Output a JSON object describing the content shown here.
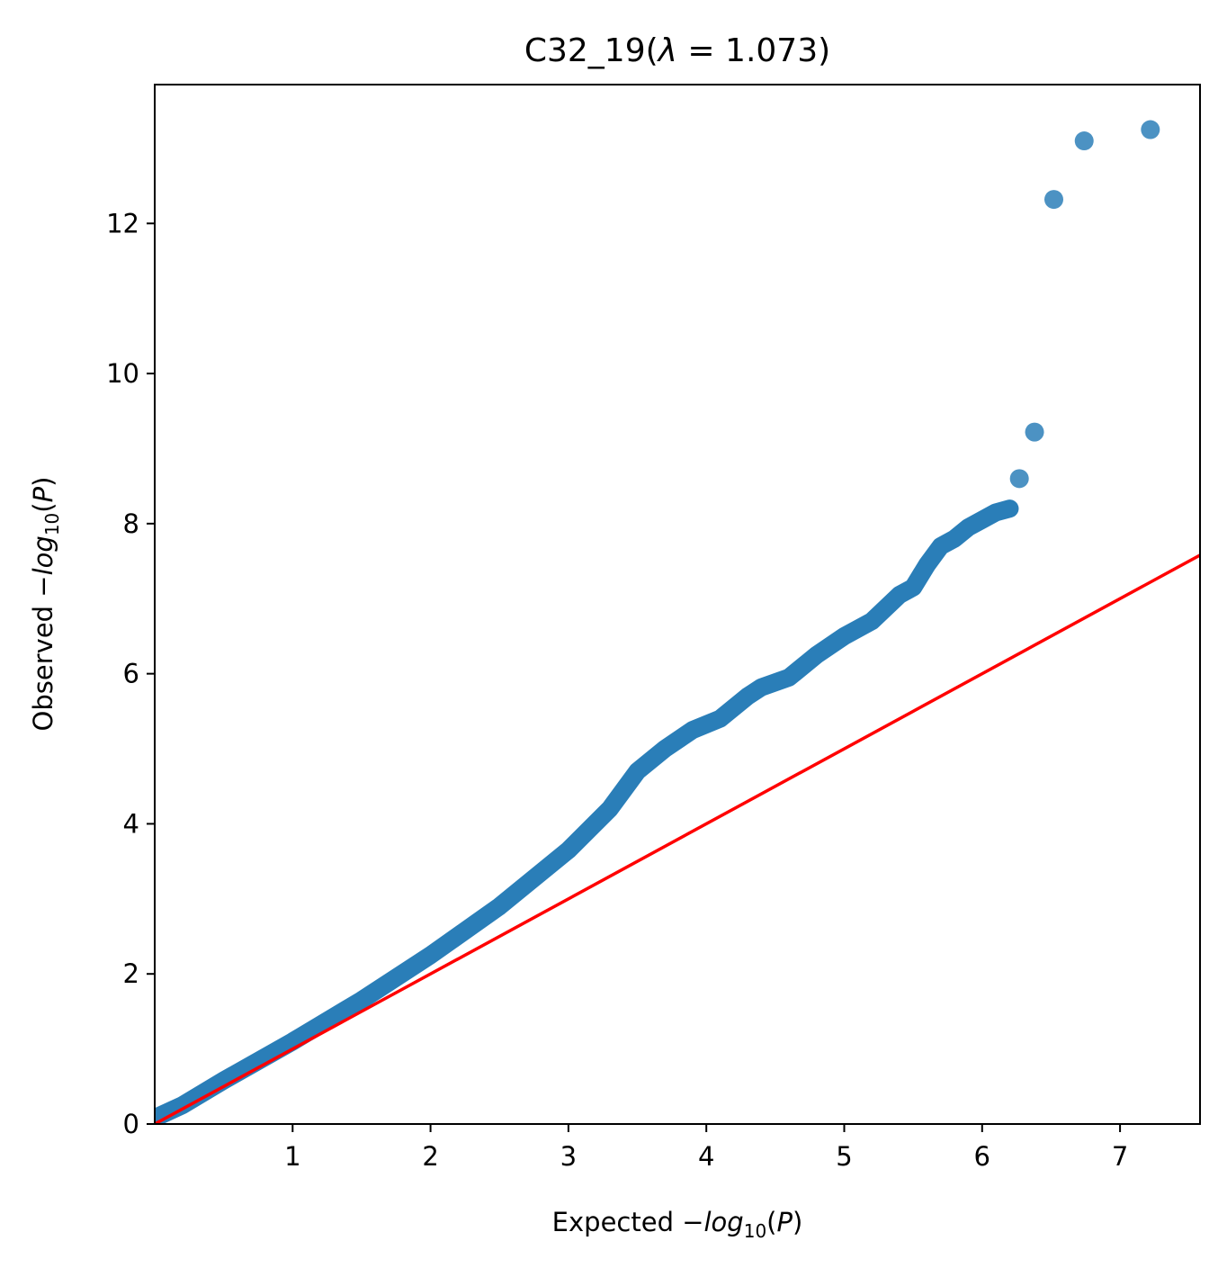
{
  "chart_data": {
    "type": "scatter",
    "title": {
      "prefix": "C32_19(",
      "lambda_symbol": "λ",
      "equals": " = 1.073)"
    },
    "xlabel": {
      "prefix": "Expected −",
      "log": "log",
      "sub": "10",
      "arg_open": "(",
      "p": "P",
      "arg_close": ")"
    },
    "ylabel": {
      "prefix": "Observed −",
      "log": "log",
      "sub": "10",
      "arg_open": "(",
      "p": "P",
      "arg_close": ")"
    },
    "xlim": [
      0,
      7.58
    ],
    "ylim": [
      0,
      13.85
    ],
    "xticks": [
      1,
      2,
      3,
      4,
      5,
      6,
      7
    ],
    "yticks": [
      0,
      2,
      4,
      6,
      8,
      10,
      12
    ],
    "grid": false,
    "colors": {
      "points": "#1f77b4",
      "reference_line": "#ff0000",
      "axes": "#000000"
    },
    "reference_line": {
      "x": [
        0,
        7.58
      ],
      "y": [
        0,
        7.58
      ]
    },
    "observed_curve": {
      "x": [
        0.0,
        0.2,
        0.5,
        1.0,
        1.5,
        2.0,
        2.5,
        3.0,
        3.3,
        3.5,
        3.7,
        3.9,
        4.1,
        4.3,
        4.4,
        4.6,
        4.8,
        5.0,
        5.2,
        5.4,
        5.5,
        5.6,
        5.7,
        5.8,
        5.9,
        6.0,
        6.1,
        6.2
      ],
      "y": [
        0.08,
        0.25,
        0.58,
        1.1,
        1.65,
        2.25,
        2.9,
        3.65,
        4.2,
        4.7,
        5.0,
        5.25,
        5.4,
        5.7,
        5.82,
        5.95,
        6.25,
        6.5,
        6.7,
        7.05,
        7.15,
        7.45,
        7.7,
        7.8,
        7.95,
        8.05,
        8.15,
        8.2
      ]
    },
    "outliers": {
      "x": [
        6.27,
        6.38,
        6.52,
        6.74,
        7.22
      ],
      "y": [
        8.6,
        9.22,
        12.32,
        13.1,
        13.25
      ]
    }
  }
}
